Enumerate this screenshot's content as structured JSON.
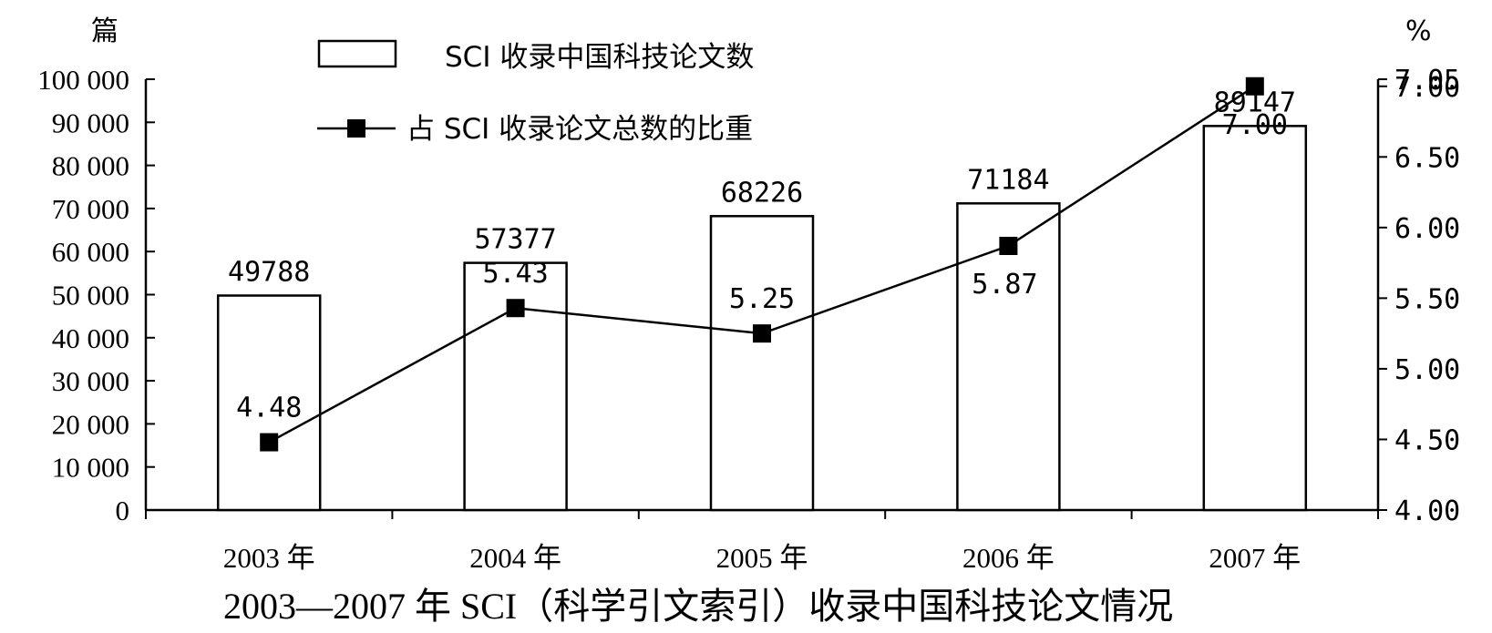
{
  "chart_data": {
    "type": "bar",
    "title": "2003—2007 年 SCI（科学引文索引）收录中国科技论文情况",
    "categories": [
      "2003 年",
      "2004 年",
      "2005 年",
      "2006 年",
      "2007 年"
    ],
    "series": [
      {
        "name": "SCI 收录中国科技论文数",
        "type": "bar",
        "axis": "left",
        "values": [
          49788,
          57377,
          68226,
          71184,
          89147
        ],
        "data_labels": [
          "49788",
          "57377",
          "68226",
          "71184",
          "89147"
        ]
      },
      {
        "name": "占 SCI 收录论文总数的比重",
        "type": "line",
        "axis": "right",
        "marker": "square",
        "values": [
          4.48,
          5.43,
          5.25,
          5.87,
          7.0
        ],
        "data_labels": [
          "4.48",
          "5.43",
          "5.25",
          "5.87",
          "7.00"
        ]
      }
    ],
    "left_axis": {
      "unit": "篇",
      "ylim": [
        0,
        100000
      ],
      "ticks": [
        0,
        10000,
        20000,
        30000,
        40000,
        50000,
        60000,
        70000,
        80000,
        90000,
        100000
      ],
      "tick_labels": [
        "0",
        "10 000",
        "20 000",
        "30 000",
        "40 000",
        "50 000",
        "60 000",
        "70 000",
        "80 000",
        "90 000",
        "100 000"
      ]
    },
    "right_axis": {
      "unit": "%",
      "ylim": [
        4.0,
        7.05
      ],
      "ticks": [
        4.0,
        4.5,
        5.0,
        5.5,
        6.0,
        6.5,
        7.0,
        7.05
      ],
      "tick_labels": [
        "4.00",
        "4.50",
        "5.00",
        "5.50",
        "6.00",
        "6.50",
        "7.00",
        "7.05"
      ]
    },
    "grid": false,
    "legend_position": "top-left"
  }
}
